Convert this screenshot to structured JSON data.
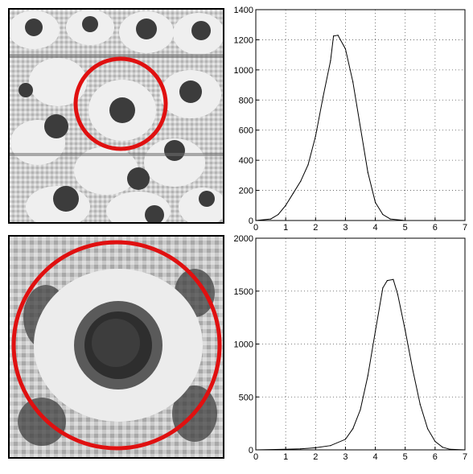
{
  "images": [
    {
      "subject": "sunflower field, small scale",
      "marker_color": "#e01010"
    },
    {
      "subject": "single sunflower, large scale",
      "marker_color": "#e01010"
    }
  ],
  "chart_data": [
    {
      "type": "line",
      "title": "",
      "xlabel": "",
      "ylabel": "",
      "xlim": [
        0,
        7
      ],
      "ylim": [
        0,
        1400
      ],
      "xticks": [
        0,
        1,
        2,
        3,
        4,
        5,
        6,
        7
      ],
      "yticks": [
        0,
        200,
        400,
        600,
        800,
        1000,
        1200,
        1400
      ],
      "grid": "dotted",
      "x": [
        0,
        0.5,
        0.75,
        1,
        1.25,
        1.5,
        1.75,
        2,
        2.25,
        2.5,
        2.6,
        2.75,
        3,
        3.25,
        3.5,
        3.75,
        4,
        4.25,
        4.5,
        5,
        7
      ],
      "y": [
        0,
        10,
        40,
        100,
        180,
        260,
        370,
        560,
        820,
        1060,
        1225,
        1230,
        1140,
        920,
        620,
        320,
        120,
        40,
        10,
        0,
        0
      ]
    },
    {
      "type": "line",
      "title": "",
      "xlabel": "",
      "ylabel": "",
      "xlim": [
        0,
        7
      ],
      "ylim": [
        0,
        2000
      ],
      "xticks": [
        0,
        1,
        2,
        3,
        4,
        5,
        6,
        7
      ],
      "yticks": [
        0,
        500,
        1000,
        1500,
        2000
      ],
      "grid": "dotted",
      "x": [
        0,
        1,
        1.5,
        2,
        2.5,
        3,
        3.25,
        3.5,
        3.75,
        4,
        4.25,
        4.4,
        4.6,
        4.75,
        5,
        5.25,
        5.5,
        5.75,
        6,
        6.25,
        6.5,
        7
      ],
      "y": [
        0,
        5,
        10,
        20,
        40,
        100,
        200,
        380,
        700,
        1120,
        1530,
        1600,
        1610,
        1470,
        1130,
        760,
        430,
        200,
        80,
        25,
        5,
        0
      ]
    }
  ]
}
